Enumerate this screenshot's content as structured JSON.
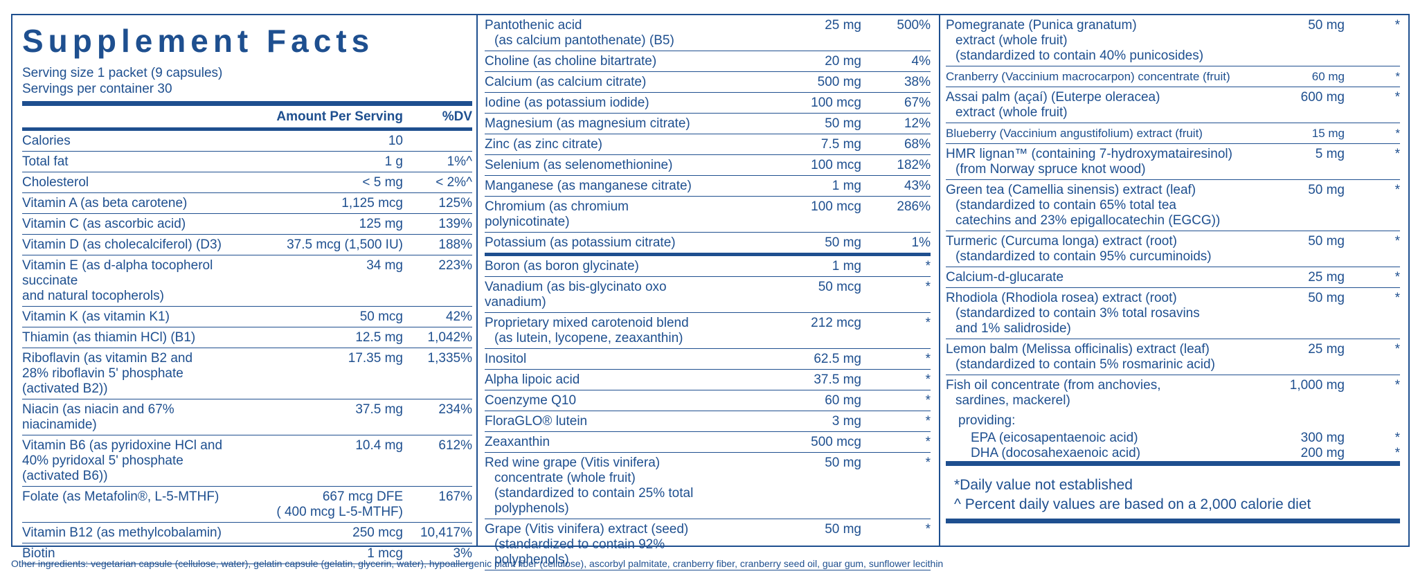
{
  "label": {
    "title": "Supplement Facts",
    "serving_size": "Serving size 1 packet (9 capsules)",
    "servings_per_container": "Servings per container 30",
    "header_amount": "Amount Per Serving",
    "header_dv": "%DV"
  },
  "col1": [
    {
      "name": "Calories",
      "amount": "10",
      "dv": ""
    },
    {
      "name": "Total fat",
      "amount": "1 g",
      "dv": "1%^"
    },
    {
      "name": "Cholesterol",
      "amount": "< 5 mg",
      "dv": "< 2%^"
    },
    {
      "name": "Vitamin A (as beta carotene)",
      "amount": "1,125 mcg",
      "dv": "125%"
    },
    {
      "name": "Vitamin C (as ascorbic acid)",
      "amount": "125 mg",
      "dv": "139%"
    },
    {
      "name": "Vitamin D (as cholecalciferol) (D3)",
      "amount": "37.5 mcg (1,500 IU)",
      "dv": "188%"
    },
    {
      "name": "Vitamin E (as d-alpha tocopherol succinate",
      "name2": "and natural tocopherols)",
      "amount": "34 mg",
      "dv": "223%"
    },
    {
      "name": "Vitamin K (as vitamin K1)",
      "amount": "50 mcg",
      "dv": "42%"
    },
    {
      "name": "Thiamin (as thiamin HCl) (B1)",
      "amount": "12.5 mg",
      "dv": "1,042%"
    },
    {
      "name": "Riboflavin (as vitamin B2 and",
      "name2": "28% riboflavin 5' phosphate (activated B2))",
      "amount": "17.35 mg",
      "dv": "1,335%"
    },
    {
      "name": "Niacin (as niacin and 67% niacinamide)",
      "amount": "37.5 mg",
      "dv": "234%"
    },
    {
      "name": "Vitamin B6 (as pyridoxine HCl and",
      "name2": "40% pyridoxal 5' phosphate (activated B6))",
      "amount": "10.4 mg",
      "dv": "612%"
    },
    {
      "name": "Folate (as Metafolin®, L-5-MTHF)",
      "amount": "667 mcg DFE",
      "amount2": "( 400 mcg L-5-MTHF)",
      "dv": "167%"
    },
    {
      "name": "Vitamin B12 (as methylcobalamin)",
      "amount": "250 mcg",
      "dv": "10,417%"
    },
    {
      "name": "Biotin",
      "amount": "1 mcg",
      "dv": "3%"
    }
  ],
  "col2": [
    {
      "name": "Pantothenic acid",
      "name2": "(as calcium pantothenate) (B5)",
      "amount": "25 mg",
      "dv": "500%"
    },
    {
      "name": "Choline (as choline bitartrate)",
      "amount": "20 mg",
      "dv": "4%"
    },
    {
      "name": "Calcium (as calcium citrate)",
      "amount": "500 mg",
      "dv": "38%"
    },
    {
      "name": "Iodine (as potassium iodide)",
      "amount": "100 mcg",
      "dv": "67%"
    },
    {
      "name": "Magnesium (as magnesium citrate)",
      "amount": "50 mg",
      "dv": "12%"
    },
    {
      "name": "Zinc (as zinc citrate)",
      "amount": "7.5 mg",
      "dv": "68%"
    },
    {
      "name": "Selenium (as selenomethionine)",
      "amount": "100 mcg",
      "dv": "182%"
    },
    {
      "name": "Manganese (as manganese citrate)",
      "amount": "1 mg",
      "dv": "43%"
    },
    {
      "name": "Chromium (as chromium polynicotinate)",
      "amount": "100 mcg",
      "dv": "286%"
    },
    {
      "name": "Potassium (as potassium citrate)",
      "amount": "50 mg",
      "dv": "1%"
    },
    {
      "name": "Boron (as boron glycinate)",
      "amount": "1 mg",
      "dv": "*"
    },
    {
      "name": "Vanadium (as bis-glycinato oxo vanadium)",
      "amount": "50 mcg",
      "dv": "*"
    },
    {
      "name": "Proprietary mixed carotenoid blend",
      "name2": "(as lutein, lycopene, zeaxanthin)",
      "amount": "212 mcg",
      "dv": "*"
    },
    {
      "name": "Inositol",
      "amount": "62.5 mg",
      "dv": "*"
    },
    {
      "name": "Alpha lipoic acid",
      "amount": "37.5 mg",
      "dv": "*"
    },
    {
      "name": "Coenzyme Q10",
      "amount": "60 mg",
      "dv": "*"
    },
    {
      "name": "FloraGLO® lutein",
      "amount": "3 mg",
      "dv": "*"
    },
    {
      "name": "Zeaxanthin",
      "amount": "500 mcg",
      "dv": "*"
    },
    {
      "name": "Red wine grape (Vitis vinifera)",
      "name2": "concentrate (whole fruit)",
      "name3": "(standardized to contain 25% total polyphenols)",
      "amount": "50 mg",
      "dv": "*"
    },
    {
      "name": "Grape (Vitis vinifera) extract (seed)",
      "name2": "(standardized to contain 92% polyphenols)",
      "amount": "50 mg",
      "dv": "*"
    }
  ],
  "col3": [
    {
      "name": "Pomegranate (Punica granatum)",
      "name2": "extract (whole fruit)",
      "name3": "(standardized to contain 40% punicosides)",
      "amount": "50 mg",
      "dv": "*"
    },
    {
      "name": "Cranberry (Vaccinium macrocarpon) concentrate (fruit)",
      "amount": "60 mg",
      "dv": "*"
    },
    {
      "name": "Assai palm (açaí) (Euterpe oleracea)",
      "name2": "extract (whole fruit)",
      "amount": "600 mg",
      "dv": "*"
    },
    {
      "name": "Blueberry (Vaccinium angustifolium) extract (fruit)",
      "amount": "15 mg",
      "dv": "*"
    },
    {
      "name": "HMR lignan™ (containing 7-hydroxymatairesinol)",
      "name2": "(from Norway spruce knot wood)",
      "amount": "5 mg",
      "dv": "*"
    },
    {
      "name": "Green tea (Camellia sinensis) extract (leaf)",
      "name2": "(standardized to contain 65% total tea",
      "name3": "catechins and 23% epigallocatechin (EGCG))",
      "amount": "50 mg",
      "dv": "*"
    },
    {
      "name": "Turmeric (Curcuma longa) extract (root)",
      "name2": "(standardized to contain 95% curcuminoids)",
      "amount": "50 mg",
      "dv": "*"
    },
    {
      "name": "Calcium-d-glucarate",
      "amount": "25 mg",
      "dv": "*"
    },
    {
      "name": "Rhodiola (Rhodiola rosea) extract (root)",
      "name2": "(standardized to contain 3% total rosavins",
      "name3": "and 1% salidroside)",
      "amount": "50 mg",
      "dv": "*"
    },
    {
      "name": "Lemon balm (Melissa officinalis) extract (leaf)",
      "name2": "(standardized to contain 5% rosmarinic acid)",
      "amount": "25 mg",
      "dv": "*"
    },
    {
      "name": "Fish oil concentrate (from anchovies,",
      "name2": "sardines, mackerel)",
      "amount": "1,000 mg",
      "dv": "*"
    }
  ],
  "fish_oil_sub": {
    "providing": "providing:",
    "items": [
      {
        "name": "EPA (eicosapentaenoic acid)",
        "amount": "300 mg",
        "dv": "*"
      },
      {
        "name": "DHA (docosahexaenoic acid)",
        "amount": "200 mg",
        "dv": "*"
      }
    ]
  },
  "notes": {
    "daily_value": "*Daily value not established",
    "percent_daily": "^ Percent daily values are based on a 2,000 calorie diet"
  },
  "other_ingredients": "Other ingredients: vegetarian capsule (cellulose, water), gelatin capsule (gelatin, glycerin, water), hypoallergenic plant fiber (cellulose), ascorbyl palmitate, cranberry fiber, cranberry seed oil, guar gum, sunflower lecithin",
  "colors": {
    "label_blue": "#1e4f8f"
  }
}
